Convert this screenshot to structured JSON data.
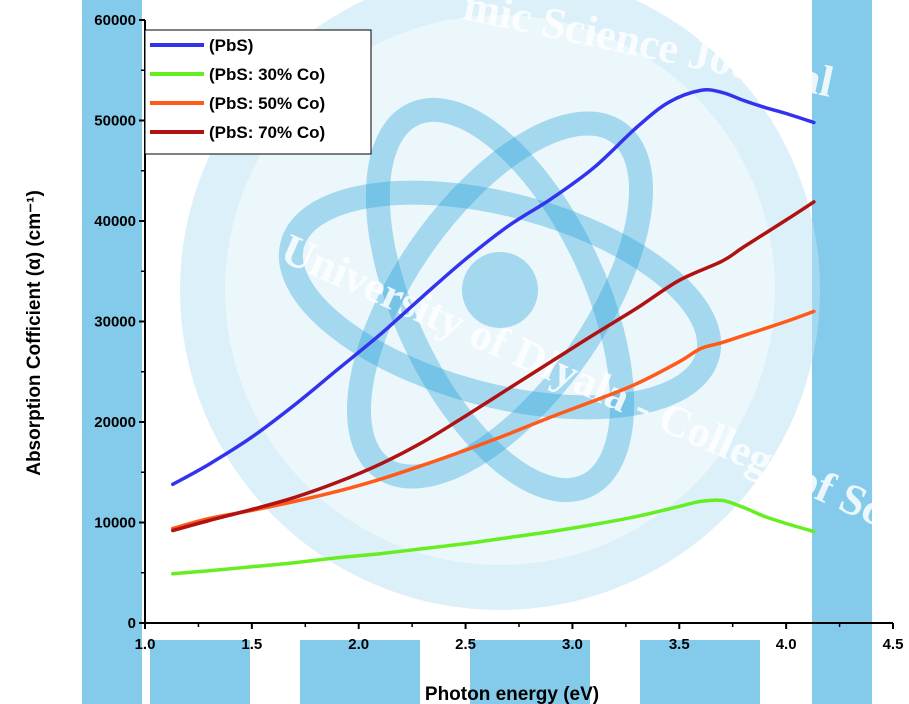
{
  "watermark": {
    "journal_text": "mic Science Journal",
    "university_text": "University of Diyala - College of Science"
  },
  "colors": {
    "watermark_blue": "#1f9fd8",
    "watermark_light": "#bfe3f4"
  },
  "chart_data": {
    "type": "line",
    "title": "",
    "xlabel": "Photon energy (eV)",
    "ylabel": "Absorption Cofficient (α) (cm⁻¹)",
    "xlim": [
      1.0,
      4.5
    ],
    "ylim": [
      0,
      60000
    ],
    "xticks": [
      "1.0",
      "1.5",
      "2.0",
      "2.5",
      "3.0",
      "3.5",
      "4.0",
      "4.5"
    ],
    "yticks": [
      "0",
      "10000",
      "20000",
      "30000",
      "40000",
      "50000",
      "60000"
    ],
    "legend_position": "top-left",
    "grid": false,
    "series": [
      {
        "name": "(PbS)",
        "color": "#3333ee",
        "x": [
          1.13,
          1.3,
          1.5,
          1.7,
          1.9,
          2.1,
          2.3,
          2.5,
          2.7,
          2.9,
          3.1,
          3.3,
          3.45,
          3.6,
          3.7,
          3.8,
          3.9,
          4.0,
          4.13
        ],
        "y": [
          13800,
          15800,
          18500,
          21700,
          25200,
          28700,
          32500,
          36200,
          39500,
          42200,
          45300,
          49300,
          51800,
          53000,
          52800,
          52000,
          51300,
          50700,
          49800
        ]
      },
      {
        "name": "(PbS: 30% Co)",
        "color": "#66ee22",
        "x": [
          1.13,
          1.3,
          1.5,
          1.7,
          1.9,
          2.1,
          2.3,
          2.5,
          2.7,
          2.9,
          3.1,
          3.3,
          3.5,
          3.6,
          3.7,
          3.8,
          3.9,
          4.0,
          4.13
        ],
        "y": [
          4900,
          5200,
          5600,
          6000,
          6500,
          6900,
          7400,
          7900,
          8500,
          9100,
          9800,
          10600,
          11600,
          12100,
          12200,
          11500,
          10600,
          9900,
          9100
        ]
      },
      {
        "name": "(PbS: 50% Co)",
        "color": "#ff5a1a",
        "x": [
          1.13,
          1.3,
          1.5,
          1.7,
          1.9,
          2.1,
          2.3,
          2.5,
          2.7,
          2.9,
          3.1,
          3.3,
          3.5,
          3.6,
          3.7,
          3.8,
          4.0,
          4.13
        ],
        "y": [
          9400,
          10400,
          11200,
          12100,
          13100,
          14300,
          15700,
          17200,
          18800,
          20500,
          22100,
          23800,
          26000,
          27300,
          27900,
          28600,
          30000,
          31000
        ]
      },
      {
        "name": "(PbS: 70% Co)",
        "color": "#b01212",
        "x": [
          1.13,
          1.3,
          1.5,
          1.7,
          1.9,
          2.1,
          2.3,
          2.5,
          2.7,
          2.9,
          3.1,
          3.3,
          3.5,
          3.7,
          3.8,
          4.0,
          4.13
        ],
        "y": [
          9200,
          10200,
          11300,
          12500,
          14000,
          15800,
          18000,
          20600,
          23300,
          26000,
          28700,
          31300,
          34100,
          36000,
          37400,
          40100,
          41900
        ]
      }
    ]
  }
}
